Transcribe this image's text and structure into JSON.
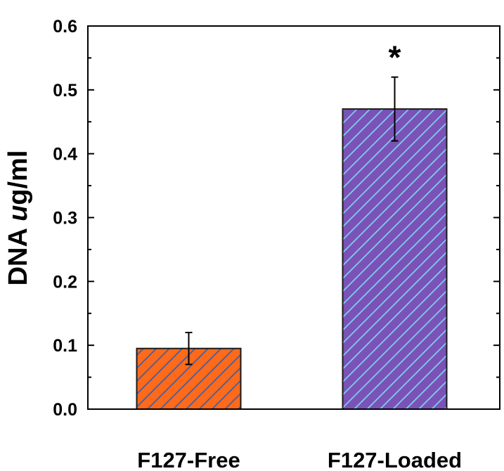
{
  "chart_data": {
    "type": "bar",
    "categories": [
      "F127-Free",
      "F127-Loaded"
    ],
    "values": [
      0.095,
      0.47
    ],
    "errors": [
      0.025,
      0.05
    ],
    "bar_colors": [
      "#ff6a1a",
      "#7a52b8"
    ],
    "hatch_colors": [
      "#3d5fa8",
      "#7fd0e8"
    ],
    "ylabel_prefix": "DNA ",
    "ylabel_unit_italic": "u",
    "ylabel_suffix": "g/ml",
    "xlabel": "",
    "title": "",
    "ylim": [
      0,
      0.6
    ],
    "yticks": [
      "0.0",
      "0.1",
      "0.2",
      "0.3",
      "0.4",
      "0.5",
      "0.6"
    ],
    "annotations": [
      {
        "category": "F127-Loaded",
        "text": "*"
      }
    ],
    "grid": false
  }
}
